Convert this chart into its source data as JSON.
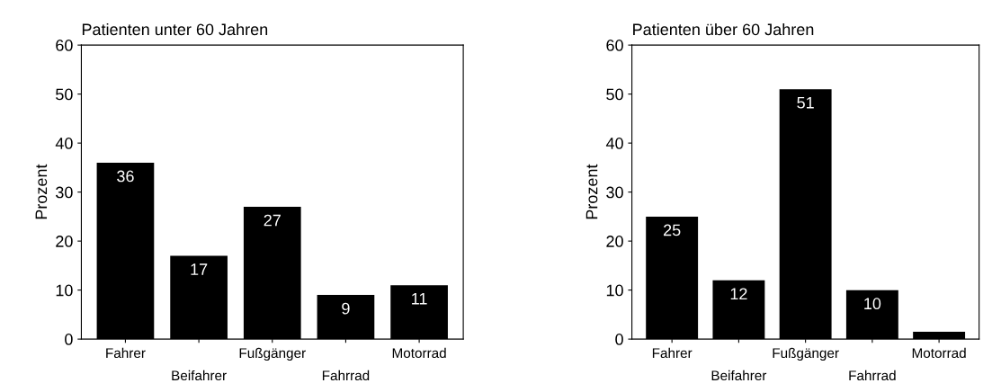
{
  "chart_data": [
    {
      "type": "bar",
      "title": "Patienten unter 60 Jahren",
      "ylabel": "Prozent",
      "categories": [
        "Fahrer",
        "Beifahrer",
        "Fußgänger",
        "Fahrrad",
        "Motorrad"
      ],
      "values": [
        36,
        17,
        27,
        9,
        11
      ],
      "color": "#000000",
      "data_labels": true,
      "ylim": [
        0,
        60
      ],
      "yticks": [
        0,
        10,
        20,
        30,
        40,
        50,
        60
      ],
      "grid": false,
      "legend": false
    },
    {
      "type": "bar",
      "title": "Patienten über 60 Jahren",
      "ylabel": "Prozent",
      "categories": [
        "Fahrer",
        "Beifahrer",
        "Fußgänger",
        "Fahrrad",
        "Motorrad"
      ],
      "values": [
        25,
        12,
        51,
        10,
        1.5
      ],
      "value_labels": [
        "25",
        "12",
        "51",
        "10",
        null
      ],
      "color": "#000000",
      "ylim": [
        0,
        60
      ],
      "yticks": [
        0,
        10,
        20,
        30,
        40,
        50,
        60
      ],
      "grid": false,
      "legend": false
    }
  ]
}
